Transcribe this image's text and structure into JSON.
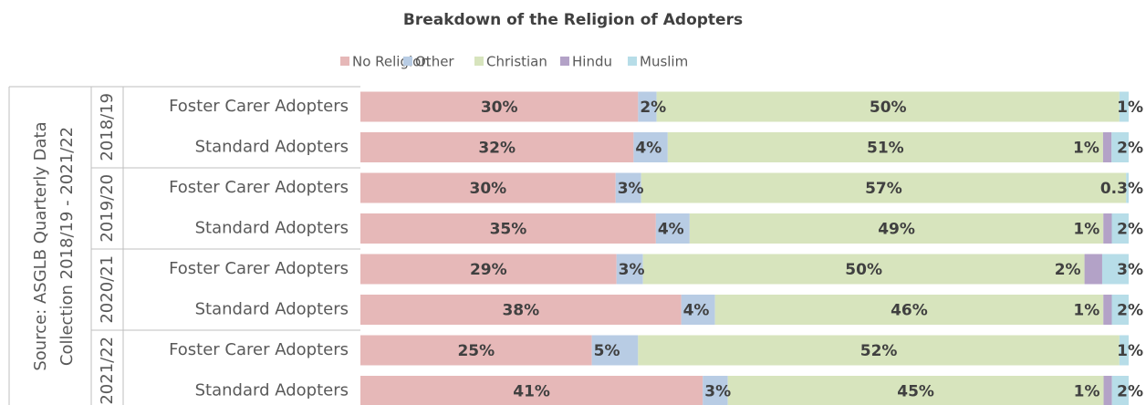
{
  "chart_data": {
    "type": "stacked_bar_percent",
    "title": "Breakdown of the Religion of Adopters",
    "y_label_lines": [
      "Source: ASGLB Quarterly Data",
      "Collection 2018/19 - 2021/22"
    ],
    "groups": [
      "2018/19",
      "2019/20",
      "2020/21",
      "2021/22"
    ],
    "categories": [
      "Foster Carer Adopters",
      "Standard Adopters",
      "Foster Carer Adopters",
      "Standard Adopters",
      "Foster Carer Adopters",
      "Standard Adopters",
      "Foster Carer Adopters",
      "Standard Adopters"
    ],
    "series": [
      {
        "name": "No Religion",
        "color": "#e6b8b8",
        "values": [
          30,
          32,
          30,
          35,
          29,
          38,
          25,
          41
        ],
        "value_labels": [
          "30%",
          "32%",
          "30%",
          "35%",
          "29%",
          "38%",
          "25%",
          "41%"
        ]
      },
      {
        "name": "Other",
        "color": "#b8cce4",
        "values": [
          2,
          4,
          3,
          4,
          3,
          4,
          5,
          3
        ],
        "value_labels": [
          "2%",
          "4%",
          "3%",
          "4%",
          "3%",
          "4%",
          "5%",
          "3%"
        ]
      },
      {
        "name": "Christian",
        "color": "#d7e4bd",
        "values": [
          50,
          51,
          57,
          49,
          50,
          46,
          52,
          45
        ],
        "value_labels": [
          "50%",
          "51%",
          "57%",
          "49%",
          "50%",
          "46%",
          "52%",
          "45%"
        ]
      },
      {
        "name": "Hindu",
        "color": "#b3a2c7",
        "values": [
          null,
          1,
          null,
          1,
          2,
          1,
          null,
          1
        ],
        "value_labels": [
          null,
          "1%",
          null,
          "1%",
          "2%",
          "1%",
          null,
          "1%"
        ]
      },
      {
        "name": "Muslim",
        "color": "#b7dde8",
        "values": [
          1,
          2,
          0.3,
          2,
          3,
          2,
          1,
          2
        ],
        "value_labels": [
          "1%",
          "2%",
          "0.3%",
          "2%",
          "3%",
          "2%",
          "1%",
          "2%"
        ]
      }
    ]
  }
}
